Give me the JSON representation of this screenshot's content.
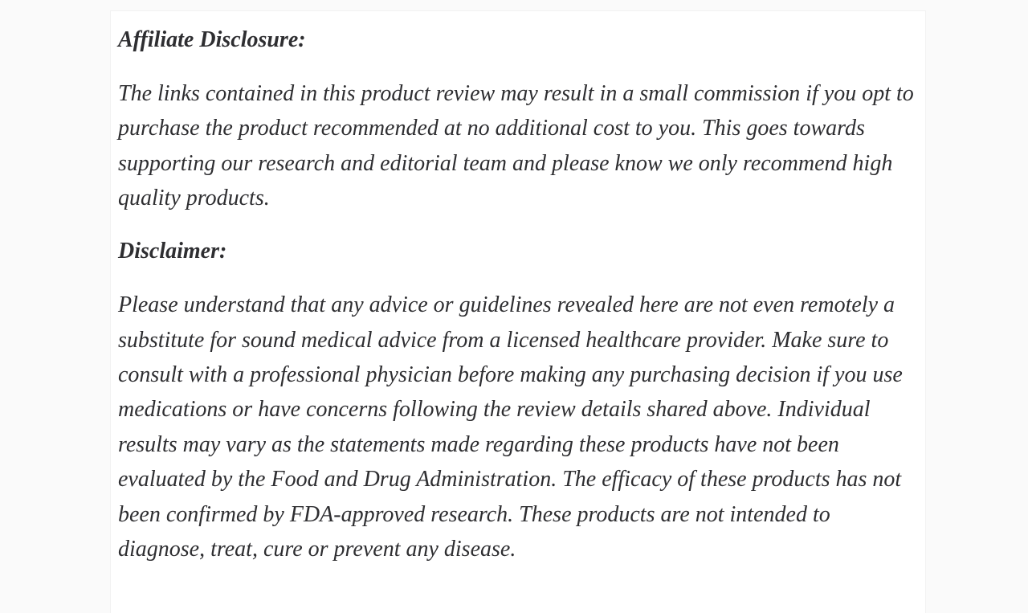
{
  "page": {
    "background_color": "#fafafa",
    "card_background_color": "#ffffff",
    "text_color": "#2e2e31"
  },
  "article": {
    "sections": [
      {
        "heading": "Affiliate Disclosure:",
        "body": "The links contained in this product review may result in a small commission if you opt to purchase the product recommended at no additional cost to you. This goes towards supporting our research and editorial team and please know we only recommend high quality products."
      },
      {
        "heading": "Disclaimer:",
        "body": "Please understand that any advice or guidelines revealed here are not even remotely a substitute for sound medical advice from a licensed healthcare provider. Make sure to consult with a professional physician before making any purchasing decision if you use medications or have concerns following the review details shared above. Individual results may vary as the statements made regarding these products have not been evaluated by the Food and Drug Administration. The efficacy of these products has not been confirmed by FDA-approved research. These products are not intended to diagnose, treat, cure or prevent any disease."
      }
    ]
  }
}
